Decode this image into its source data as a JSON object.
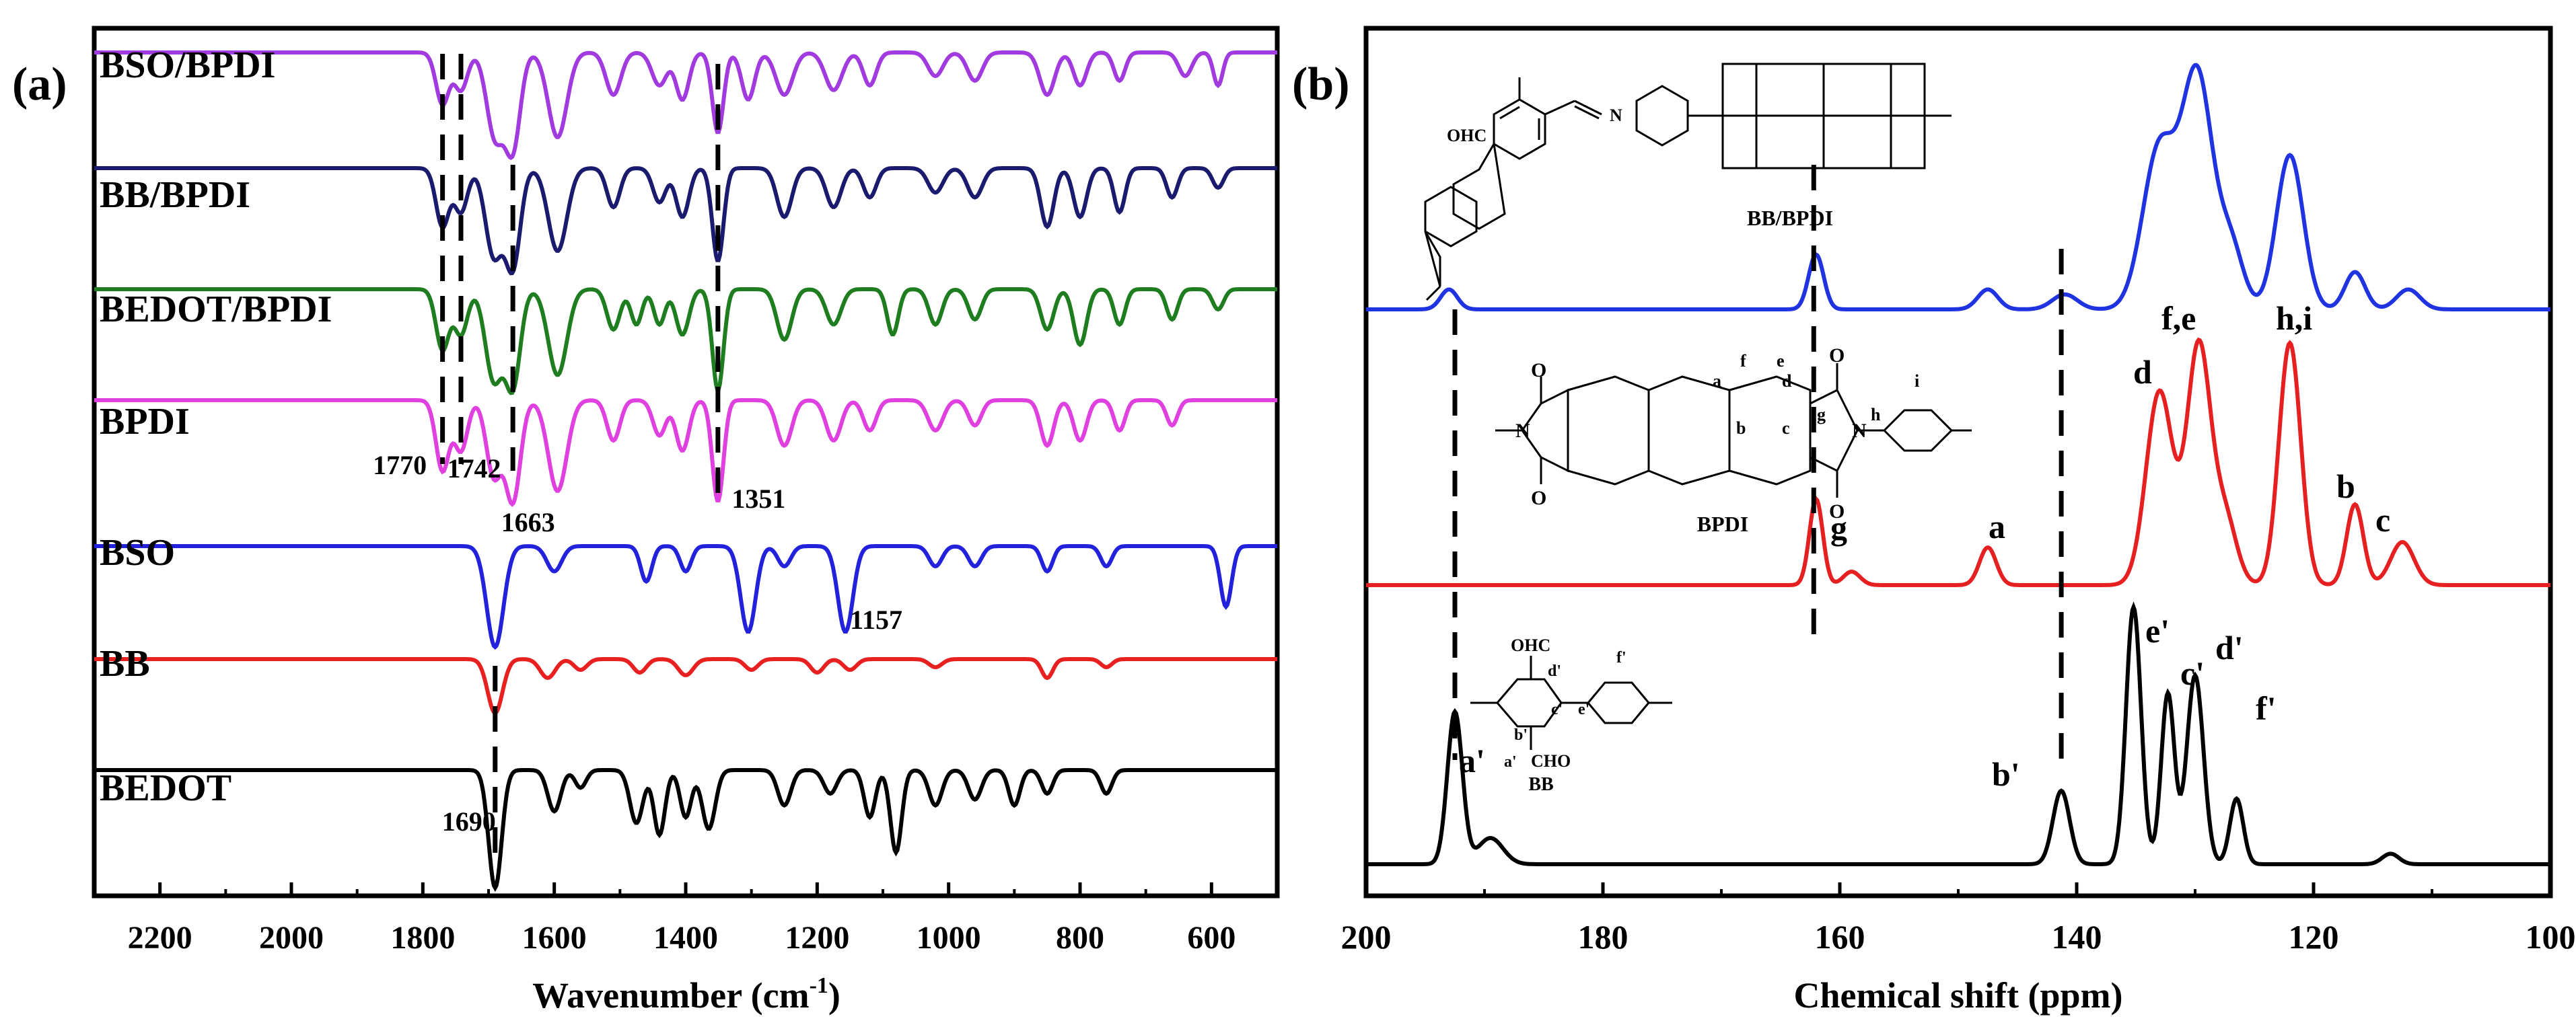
{
  "chart_data": [
    {
      "panel_label": "(a)",
      "type": "line",
      "xlabel": "Wavenumber (cm",
      "xlabel_sup": "-1",
      "xlabel_end": ")",
      "xlim": [
        2300,
        500
      ],
      "xticks": [
        2200,
        2000,
        1800,
        1600,
        1400,
        1200,
        1000,
        800,
        600
      ],
      "ylabel": "",
      "series": [
        {
          "name": "BSO/BPDI",
          "label": "BSO/BPDI",
          "color": "#a23bdf",
          "peaks": [
            [
              1770,
              0.55,
              14
            ],
            [
              1742,
              0.4,
              14
            ],
            [
              1690,
              0.9,
              18
            ],
            [
              1663,
              1.0,
              16
            ],
            [
              1595,
              0.9,
              20
            ],
            [
              1510,
              0.45,
              16
            ],
            [
              1440,
              0.35,
              16
            ],
            [
              1405,
              0.5,
              14
            ],
            [
              1351,
              0.85,
              12
            ],
            [
              1305,
              0.5,
              14
            ],
            [
              1250,
              0.45,
              18
            ],
            [
              1175,
              0.4,
              18
            ],
            [
              1120,
              0.35,
              14
            ],
            [
              1020,
              0.25,
              16
            ],
            [
              960,
              0.3,
              16
            ],
            [
              850,
              0.45,
              16
            ],
            [
              800,
              0.35,
              14
            ],
            [
              740,
              0.3,
              12
            ],
            [
              640,
              0.25,
              14
            ],
            [
              590,
              0.35,
              10
            ]
          ]
        },
        {
          "name": "BB/BPDI",
          "label": "BB/BPDI",
          "color": "#1a1a6e",
          "peaks": [
            [
              1770,
              0.6,
              14
            ],
            [
              1742,
              0.45,
              14
            ],
            [
              1692,
              0.9,
              18
            ],
            [
              1663,
              1.0,
              16
            ],
            [
              1595,
              0.85,
              20
            ],
            [
              1510,
              0.4,
              14
            ],
            [
              1440,
              0.35,
              14
            ],
            [
              1405,
              0.5,
              14
            ],
            [
              1351,
              0.95,
              12
            ],
            [
              1250,
              0.5,
              16
            ],
            [
              1175,
              0.4,
              16
            ],
            [
              1120,
              0.3,
              14
            ],
            [
              1020,
              0.25,
              16
            ],
            [
              960,
              0.3,
              16
            ],
            [
              850,
              0.6,
              14
            ],
            [
              800,
              0.5,
              14
            ],
            [
              740,
              0.45,
              12
            ],
            [
              660,
              0.3,
              12
            ],
            [
              590,
              0.2,
              12
            ]
          ]
        },
        {
          "name": "BEDOT/BPDI",
          "label": "BEDOT/BPDI",
          "color": "#1e7d1e",
          "peaks": [
            [
              1770,
              0.6,
              14
            ],
            [
              1742,
              0.45,
              14
            ],
            [
              1692,
              0.9,
              18
            ],
            [
              1663,
              0.95,
              16
            ],
            [
              1595,
              0.85,
              20
            ],
            [
              1510,
              0.4,
              14
            ],
            [
              1475,
              0.35,
              12
            ],
            [
              1440,
              0.35,
              12
            ],
            [
              1405,
              0.45,
              14
            ],
            [
              1351,
              1.0,
              12
            ],
            [
              1250,
              0.5,
              16
            ],
            [
              1175,
              0.35,
              16
            ],
            [
              1085,
              0.45,
              12
            ],
            [
              1020,
              0.35,
              14
            ],
            [
              960,
              0.3,
              14
            ],
            [
              850,
              0.4,
              14
            ],
            [
              800,
              0.55,
              14
            ],
            [
              740,
              0.35,
              12
            ],
            [
              660,
              0.3,
              12
            ],
            [
              590,
              0.2,
              12
            ]
          ]
        },
        {
          "name": "BPDI",
          "label": "BPDI",
          "color": "#e040e0",
          "peaks": [
            [
              1770,
              0.7,
              14
            ],
            [
              1742,
              0.5,
              14
            ],
            [
              1692,
              0.75,
              16
            ],
            [
              1663,
              1.0,
              16
            ],
            [
              1595,
              0.9,
              20
            ],
            [
              1510,
              0.4,
              14
            ],
            [
              1440,
              0.35,
              14
            ],
            [
              1405,
              0.5,
              14
            ],
            [
              1351,
              1.0,
              12
            ],
            [
              1250,
              0.45,
              16
            ],
            [
              1175,
              0.4,
              16
            ],
            [
              1120,
              0.3,
              14
            ],
            [
              1020,
              0.3,
              16
            ],
            [
              960,
              0.25,
              14
            ],
            [
              850,
              0.45,
              14
            ],
            [
              800,
              0.4,
              14
            ],
            [
              740,
              0.3,
              12
            ],
            [
              660,
              0.25,
              12
            ]
          ]
        },
        {
          "name": "BSO",
          "label": "BSO",
          "color": "#2222dd",
          "peaks": [
            [
              1690,
              1.0,
              18
            ],
            [
              1600,
              0.25,
              16
            ],
            [
              1460,
              0.35,
              12
            ],
            [
              1400,
              0.25,
              12
            ],
            [
              1305,
              0.85,
              16
            ],
            [
              1250,
              0.2,
              14
            ],
            [
              1157,
              0.85,
              16
            ],
            [
              1020,
              0.2,
              14
            ],
            [
              960,
              0.2,
              14
            ],
            [
              850,
              0.25,
              12
            ],
            [
              760,
              0.2,
              12
            ],
            [
              578,
              0.6,
              12
            ]
          ]
        },
        {
          "name": "BB",
          "label": "BB",
          "color": "#e82020",
          "peaks": [
            [
              1690,
              1.0,
              16
            ],
            [
              1610,
              0.35,
              16
            ],
            [
              1560,
              0.2,
              14
            ],
            [
              1470,
              0.25,
              14
            ],
            [
              1400,
              0.3,
              16
            ],
            [
              1300,
              0.2,
              14
            ],
            [
              1200,
              0.25,
              14
            ],
            [
              1150,
              0.2,
              14
            ],
            [
              1020,
              0.15,
              14
            ],
            [
              850,
              0.35,
              12
            ],
            [
              760,
              0.15,
              12
            ]
          ]
        },
        {
          "name": "BEDOT",
          "label": "BEDOT",
          "color": "#000000",
          "peaks": [
            [
              1690,
              1.0,
              14
            ],
            [
              1600,
              0.35,
              14
            ],
            [
              1560,
              0.15,
              12
            ],
            [
              1475,
              0.45,
              14
            ],
            [
              1440,
              0.55,
              12
            ],
            [
              1400,
              0.4,
              12
            ],
            [
              1365,
              0.5,
              14
            ],
            [
              1250,
              0.3,
              14
            ],
            [
              1180,
              0.2,
              14
            ],
            [
              1120,
              0.4,
              12
            ],
            [
              1080,
              0.7,
              12
            ],
            [
              1020,
              0.3,
              14
            ],
            [
              960,
              0.25,
              14
            ],
            [
              900,
              0.3,
              12
            ],
            [
              850,
              0.2,
              12
            ],
            [
              760,
              0.2,
              12
            ]
          ]
        }
      ],
      "annotations": [
        {
          "text": "1770",
          "x": 1770
        },
        {
          "text": "1742",
          "x": 1742
        },
        {
          "text": "1663",
          "x": 1663
        },
        {
          "text": "1351",
          "x": 1351
        },
        {
          "text": "1157",
          "x": 1157
        },
        {
          "text": "1690",
          "x": 1690
        }
      ],
      "dashed_lines_at": [
        1770,
        1742,
        1663,
        1351,
        1690
      ]
    },
    {
      "panel_label": "(b)",
      "type": "line",
      "xlabel": "Chemical shift (ppm)",
      "xlim": [
        200,
        100
      ],
      "xticks": [
        200,
        180,
        160,
        140,
        120,
        100
      ],
      "series": [
        {
          "name": "BB/BPDI",
          "label": "BB/BPDI",
          "color": "#1f33e0",
          "peaks": [
            [
              193,
              0.08,
              1.0
            ],
            [
              162,
              0.22,
              0.9
            ],
            [
              147.5,
              0.08,
              1.2
            ],
            [
              141,
              0.06,
              1.5
            ],
            [
              133,
              0.65,
              2.0
            ],
            [
              129.8,
              0.92,
              1.8
            ],
            [
              127,
              0.25,
              1.5
            ],
            [
              122,
              0.62,
              1.6
            ],
            [
              116.5,
              0.15,
              1.2
            ],
            [
              112,
              0.08,
              1.4
            ]
          ]
        },
        {
          "name": "BPDI",
          "label": "BPDI",
          "color": "#e62020",
          "peaks": [
            [
              162,
              0.32,
              0.8
            ],
            [
              159,
              0.05,
              1.0
            ],
            [
              147.5,
              0.14,
              1.0
            ],
            [
              133,
              0.72,
              1.6
            ],
            [
              129.7,
              0.88,
              1.4
            ],
            [
              127.5,
              0.25,
              1.4
            ],
            [
              122,
              0.9,
              1.3
            ],
            [
              116.5,
              0.3,
              1.0
            ],
            [
              112.5,
              0.16,
              1.4
            ]
          ]
        },
        {
          "name": "BB",
          "label": "BB",
          "color": "#000000",
          "peaks": [
            [
              192.5,
              0.58,
              0.9
            ],
            [
              189.5,
              0.1,
              1.5
            ],
            [
              141.3,
              0.28,
              1.0
            ],
            [
              135.2,
              0.98,
              0.9
            ],
            [
              132.3,
              0.65,
              0.8
            ],
            [
              130,
              0.72,
              1.0
            ],
            [
              126.5,
              0.25,
              0.8
            ],
            [
              113.5,
              0.04,
              1.0
            ]
          ]
        }
      ],
      "peak_labels": {
        "bpdi": [
          "d",
          "f,e",
          "h,i",
          "b",
          "c",
          "a",
          "g"
        ],
        "bb": [
          "e'",
          "c'",
          "d'",
          "f'",
          "a'",
          "b'"
        ]
      },
      "dashed_lines_at": [
        192.5,
        162.2,
        141.3
      ],
      "structures": {
        "bb_bpdi": {
          "caption": "BB/BPDI",
          "aldehyde": "OHC",
          "imine": "N"
        },
        "bpdi": {
          "caption": "BPDI",
          "atoms": {
            "o": "O",
            "n": "N"
          },
          "letters": [
            "a",
            "b",
            "c",
            "d",
            "e",
            "f",
            "g",
            "h",
            "i"
          ]
        },
        "bb": {
          "caption": "BB",
          "aldehyde1": "OHC",
          "aldehyde2": "CHO",
          "letters": [
            "a'",
            "b'",
            "c'",
            "d'",
            "e'",
            "f'"
          ]
        }
      }
    }
  ]
}
